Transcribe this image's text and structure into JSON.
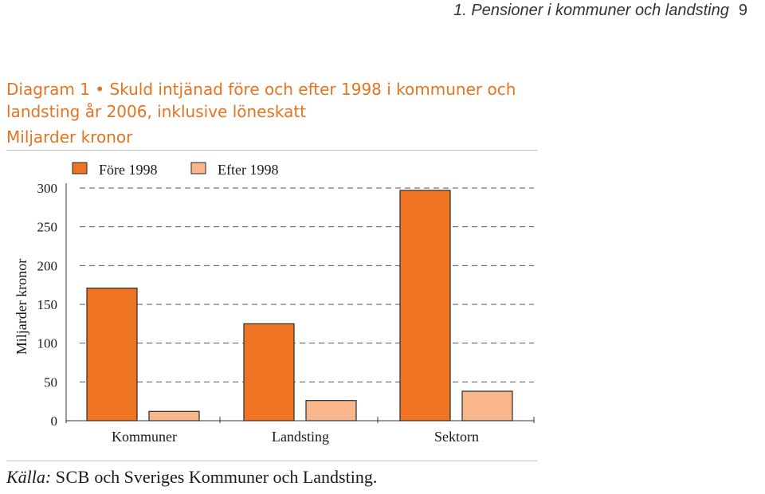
{
  "header": {
    "running_title": "1. Pensioner i kommuner och landsting",
    "page_number": "9"
  },
  "figure": {
    "title": "Diagram 1 • Skuld intjänad före och efter 1998 i kommuner och landsting år 2006, inklusive löneskatt",
    "unit": "Miljarder kronor",
    "source_label": "Källa:",
    "source_org": "SCB",
    "source_rest": " och Sveriges Kommuner och Landsting."
  },
  "colors": {
    "fore_1998": "#ee7423",
    "efter_1998": "#f9b68a",
    "title": "#e8731f",
    "gridline": "#555555"
  },
  "chart_data": {
    "type": "bar",
    "categories": [
      "Kommuner",
      "Landsting",
      "Sektorn"
    ],
    "series": [
      {
        "name": "Före 1998",
        "values": [
          171,
          125,
          297
        ]
      },
      {
        "name": "Efter 1998",
        "values": [
          12,
          26,
          38
        ]
      }
    ],
    "ylabel": "Miljarder kronor",
    "ylim": [
      0,
      300
    ],
    "yticks": [
      0,
      50,
      100,
      150,
      200,
      250,
      300
    ],
    "grid": true,
    "grid_style": "dashed",
    "legend_position": "top"
  }
}
